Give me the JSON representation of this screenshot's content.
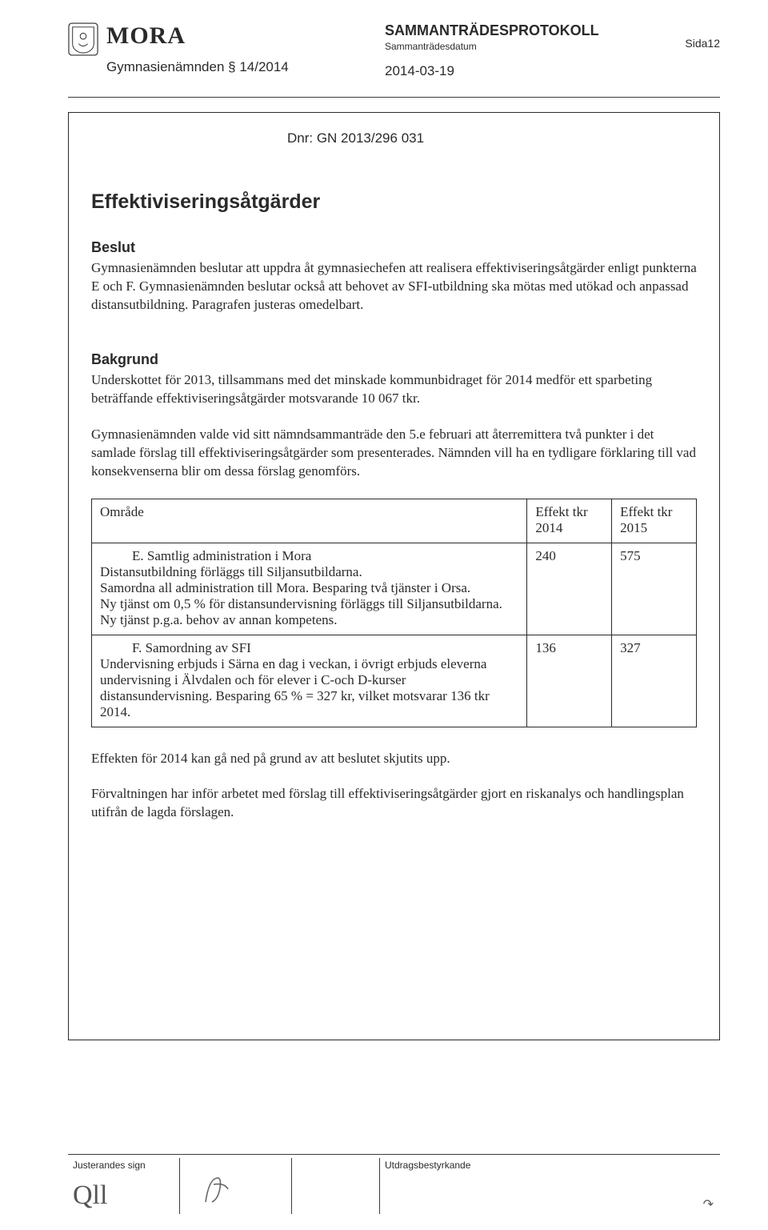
{
  "header": {
    "org": "MORA",
    "committee": "Gymnasienämnden § 14/2014",
    "protokoll": "SAMMANTRÄDESPROTOKOLL",
    "datum_label": "Sammanträdesdatum",
    "date": "2014-03-19",
    "page_label": "Sida12"
  },
  "dnr": "Dnr: GN 2013/296 031",
  "title": "Effektiviseringsåtgärder",
  "beslut": {
    "heading": "Beslut",
    "text": "Gymnasienämnden beslutar att uppdra åt gymnasiechefen att realisera effektiviseringsåtgärder enligt punkterna E och F. Gymnasienämnden beslutar också att behovet av SFI-utbildning ska mötas med utökad och anpassad distansutbildning. Paragrafen justeras omedelbart."
  },
  "bakgrund": {
    "heading": "Bakgrund",
    "p1": "Underskottet för 2013, tillsammans med det minskade kommunbidraget för 2014 medför ett sparbeting beträffande effektiviseringsåtgärder motsvarande 10 067 tkr.",
    "p2": "Gymnasienämnden valde vid sitt nämndsammanträde den 5.e februari att återremittera två punkter i det samlade förslag till effektiviseringsåtgärder som presenterades. Nämnden vill ha en tydligare förklaring till vad konsekvenserna blir om dessa förslag genomförs."
  },
  "table": {
    "columns": [
      "Område",
      "Effekt tkr 2014",
      "Effekt tkr 2015"
    ],
    "rows": [
      {
        "lead": "E.  Samtlig administration i Mora",
        "body": "Distansutbildning förläggs till Siljansutbildarna.\nSamordna all administration till Mora. Besparing två tjänster i Orsa.\nNy tjänst om 0,5 % för distansundervisning förläggs till Siljansutbildarna. Ny tjänst p.g.a. behov av annan kompetens.",
        "v2014": "240",
        "v2015": "575"
      },
      {
        "lead": "F.  Samordning av SFI",
        "body": "Undervisning erbjuds i Särna en dag i veckan, i övrigt erbjuds eleverna undervisning i Älvdalen och för elever i C-och D-kurser distansundervisning. Besparing 65 % = 327 kr, vilket motsvarar 136 tkr 2014.",
        "v2014": "136",
        "v2015": "327"
      }
    ]
  },
  "post": {
    "p1": "Effekten för 2014 kan gå ned på grund av att beslutet skjutits upp.",
    "p2": "Förvaltningen har inför arbetet med förslag till effektiviseringsåtgärder gjort en riskanalys och handlingsplan utifrån de lagda förslagen."
  },
  "footer": {
    "sign_label": "Justerandes sign",
    "utdrag_label": "Utdragsbestyrkande"
  },
  "colors": {
    "text": "#2a2a2a",
    "border": "#2a2a2a",
    "bg": "#ffffff"
  }
}
